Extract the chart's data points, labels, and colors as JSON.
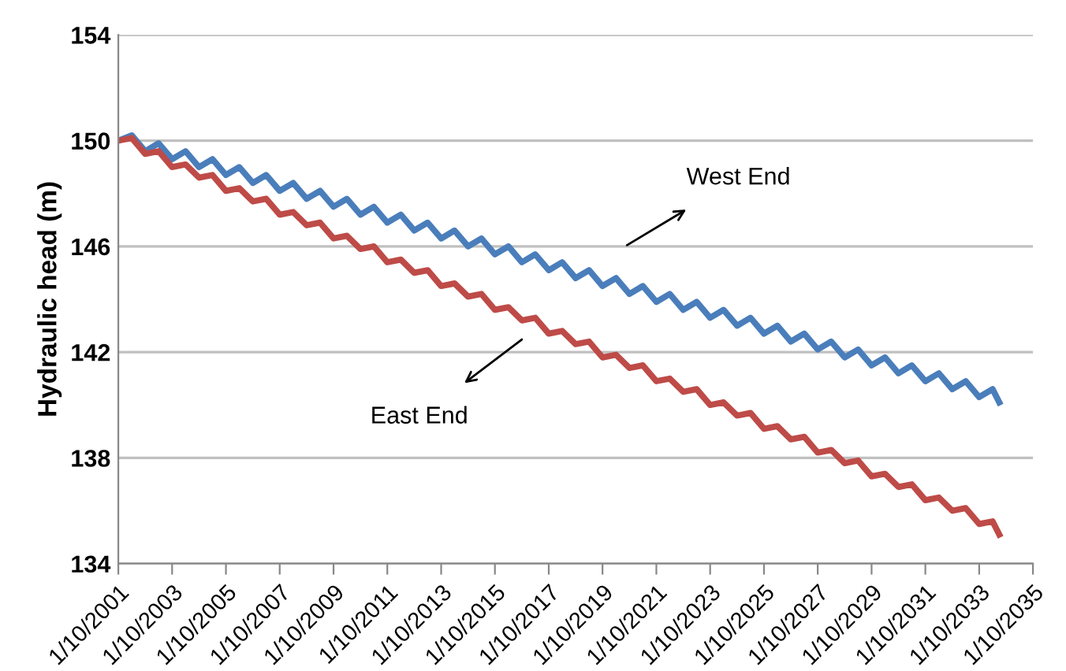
{
  "chart_data": {
    "type": "line",
    "ylabel": "Hydraulic head (m)",
    "x": [
      "2001-10",
      "2002-04",
      "2002-10",
      "2003-04",
      "2003-10",
      "2004-04",
      "2004-10",
      "2005-04",
      "2005-10",
      "2006-04",
      "2006-10",
      "2007-04",
      "2007-10",
      "2008-04",
      "2008-10",
      "2009-04",
      "2009-10",
      "2010-04",
      "2010-10",
      "2011-04",
      "2011-10",
      "2012-04",
      "2012-10",
      "2013-04",
      "2013-10",
      "2014-04",
      "2014-10",
      "2015-04",
      "2015-10",
      "2016-04",
      "2016-10",
      "2017-04",
      "2017-10",
      "2018-04",
      "2018-10",
      "2019-04",
      "2019-10",
      "2020-04",
      "2020-10",
      "2021-04",
      "2021-10",
      "2022-04",
      "2022-10",
      "2023-04",
      "2023-10",
      "2024-04",
      "2024-10",
      "2025-04",
      "2025-10",
      "2026-04",
      "2026-10",
      "2027-04",
      "2027-10",
      "2028-04",
      "2028-10",
      "2029-04",
      "2029-10",
      "2030-04",
      "2030-10",
      "2031-04",
      "2031-10",
      "2032-04",
      "2032-10",
      "2033-04",
      "2033-10",
      "2034-04",
      "2034-07"
    ],
    "series": [
      {
        "color": "#4a7ebb",
        "values": [
          150.0,
          150.2,
          149.6,
          149.9,
          149.3,
          149.6,
          149.0,
          149.3,
          148.7,
          149.0,
          148.4,
          148.7,
          148.1,
          148.4,
          147.8,
          148.1,
          147.5,
          147.8,
          147.2,
          147.5,
          146.9,
          147.2,
          146.6,
          146.9,
          146.3,
          146.6,
          146.0,
          146.3,
          145.7,
          146.0,
          145.4,
          145.7,
          145.1,
          145.4,
          144.8,
          145.1,
          144.5,
          144.8,
          144.2,
          144.5,
          143.9,
          144.2,
          143.6,
          143.9,
          143.3,
          143.6,
          143.0,
          143.3,
          142.7,
          143.0,
          142.4,
          142.7,
          142.1,
          142.4,
          141.8,
          142.1,
          141.5,
          141.8,
          141.2,
          141.5,
          140.9,
          141.2,
          140.6,
          140.9,
          140.3,
          140.6,
          140.1
        ]
      },
      {
        "color": "#be4b48",
        "values": [
          150.0,
          150.1,
          149.5,
          149.6,
          149.0,
          149.1,
          148.6,
          148.7,
          148.1,
          148.2,
          147.7,
          147.8,
          147.2,
          147.3,
          146.8,
          146.9,
          146.3,
          146.4,
          145.9,
          146.0,
          145.4,
          145.5,
          145.0,
          145.1,
          144.5,
          144.6,
          144.1,
          144.2,
          143.6,
          143.7,
          143.2,
          143.3,
          142.7,
          142.8,
          142.3,
          142.4,
          141.8,
          141.9,
          141.4,
          141.5,
          140.9,
          141.0,
          140.5,
          140.6,
          140.0,
          140.1,
          139.6,
          139.7,
          139.1,
          139.2,
          138.7,
          138.8,
          138.2,
          138.3,
          137.8,
          137.9,
          137.3,
          137.4,
          136.9,
          137.0,
          136.4,
          136.5,
          136.0,
          136.1,
          135.5,
          135.6,
          135.1
        ]
      }
    ],
    "annotations": [
      "West End",
      "East End"
    ],
    "xlim": [
      "2001-10-01",
      "2035-10-01"
    ],
    "xticks": [
      {
        "value": "2001-10-01",
        "label": "1/10/2001"
      },
      {
        "value": "2003-10-01",
        "label": "1/10/2003"
      },
      {
        "value": "2005-10-01",
        "label": "1/10/2005"
      },
      {
        "value": "2007-10-01",
        "label": "1/10/2007"
      },
      {
        "value": "2009-10-01",
        "label": "1/10/2009"
      },
      {
        "value": "2011-10-01",
        "label": "1/10/2011"
      },
      {
        "value": "2013-10-01",
        "label": "1/10/2013"
      },
      {
        "value": "2015-10-01",
        "label": "1/10/2015"
      },
      {
        "value": "2017-10-01",
        "label": "1/10/2017"
      },
      {
        "value": "2019-10-01",
        "label": "1/10/2019"
      },
      {
        "value": "2021-10-01",
        "label": "1/10/2021"
      },
      {
        "value": "2023-10-01",
        "label": "1/10/2023"
      },
      {
        "value": "2025-10-01",
        "label": "1/10/2025"
      },
      {
        "value": "2027-10-01",
        "label": "1/10/2027"
      },
      {
        "value": "2029-10-01",
        "label": "1/10/2029"
      },
      {
        "value": "2031-10-01",
        "label": "1/10/2031"
      },
      {
        "value": "2033-10-01",
        "label": "1/10/2033"
      },
      {
        "value": "2035-10-01",
        "label": "1/10/2035"
      }
    ],
    "ylim": [
      134,
      154
    ],
    "yticks": [
      134,
      138,
      142,
      146,
      150,
      154
    ],
    "grid": "y",
    "marker": "none",
    "line_style": "solid"
  }
}
